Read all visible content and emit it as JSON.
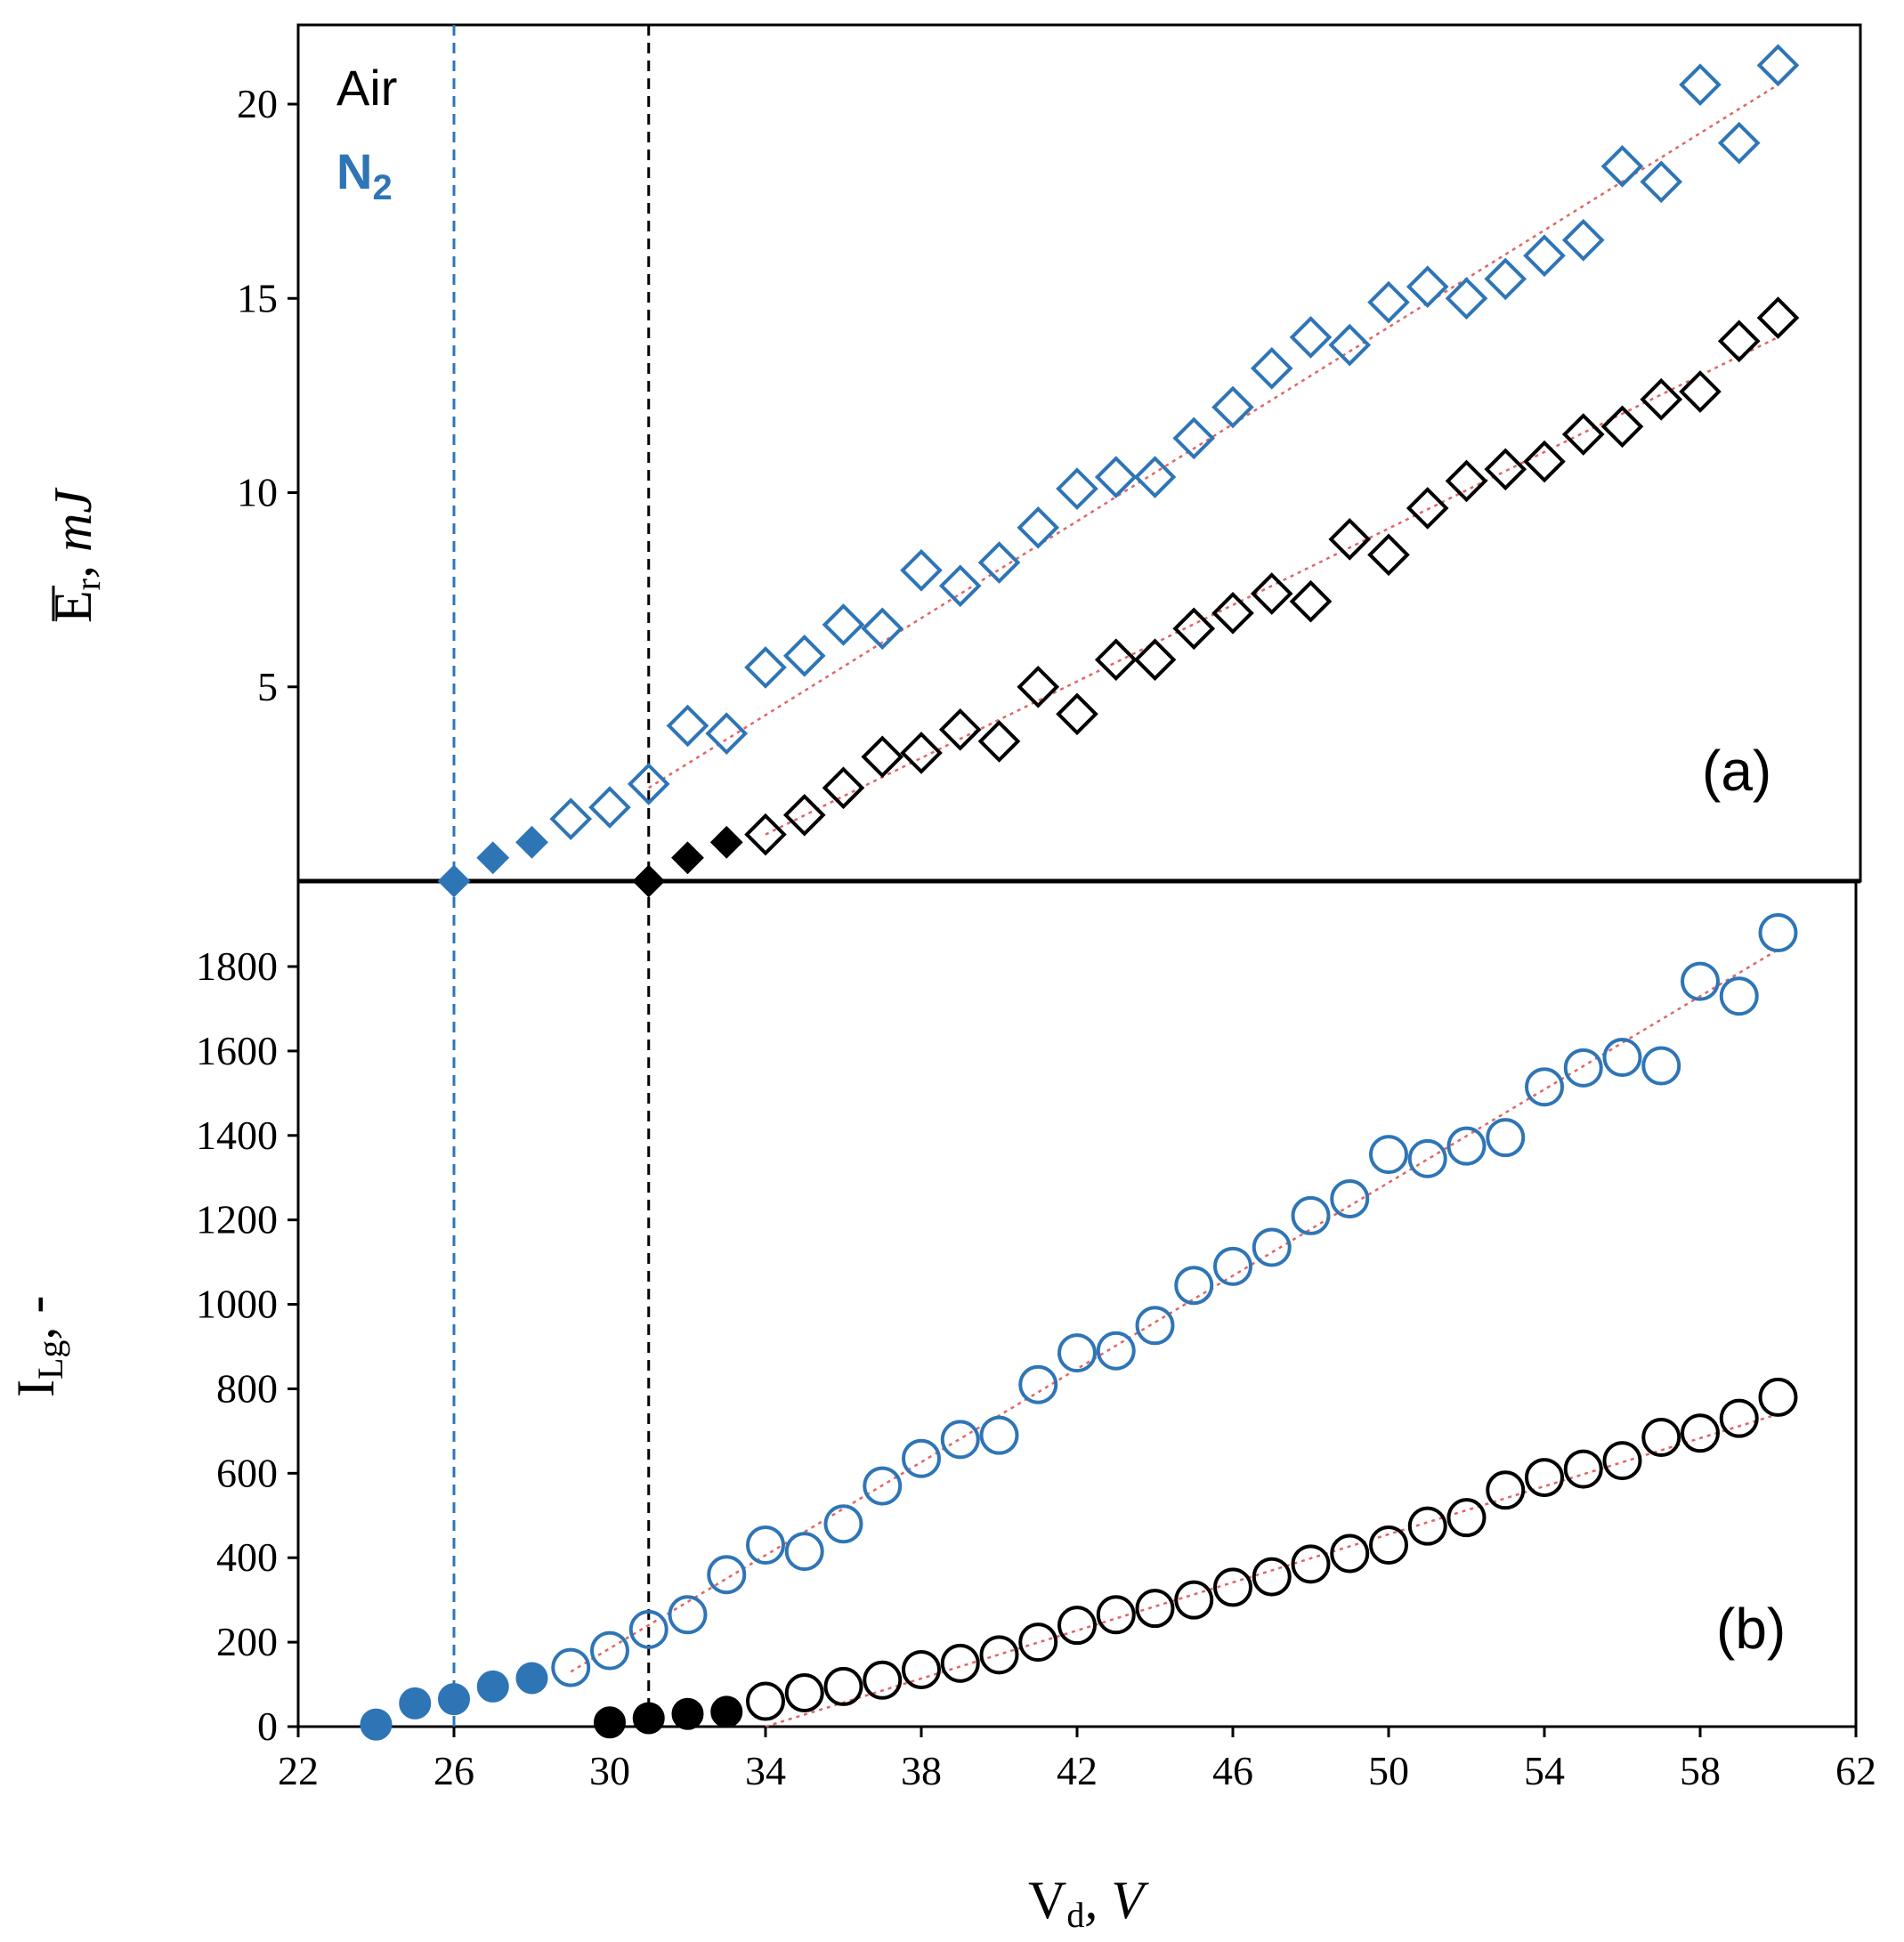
{
  "chart_data": [
    {
      "panel": "a",
      "type": "scatter",
      "panel_label": "(a)",
      "ylabel_main": "E",
      "ylabel_sub": "r",
      "ylabel_unit": ", mJ",
      "ylim": [
        0,
        22
      ],
      "yticks": [
        5,
        10,
        15,
        20
      ],
      "yticklabels": [
        "5",
        "10",
        "15",
        "20"
      ],
      "legend": [
        {
          "label": "Air",
          "color": "#000000"
        },
        {
          "label": "N",
          "sub": "2",
          "color": "#2e75b6"
        }
      ],
      "threshold_lines": [
        {
          "series": "N2",
          "x": 26,
          "color": "#2e75b6"
        },
        {
          "series": "Air",
          "x": 31,
          "color": "#000000"
        }
      ],
      "series": [
        {
          "name": "N2",
          "color": "#2e75b6",
          "marker": "diamond",
          "points": [
            [
              26,
              0.0,
              1
            ],
            [
              27,
              0.6,
              1
            ],
            [
              28,
              1.0,
              1
            ],
            [
              29,
              1.6,
              0
            ],
            [
              30,
              1.9,
              0
            ],
            [
              31,
              2.5,
              0
            ],
            [
              32,
              4.0,
              0
            ],
            [
              33,
              3.8,
              0
            ],
            [
              34,
              5.5,
              0
            ],
            [
              35,
              5.8,
              0
            ],
            [
              36,
              6.6,
              0
            ],
            [
              37,
              6.5,
              0
            ],
            [
              38,
              8.0,
              0
            ],
            [
              39,
              7.6,
              0
            ],
            [
              40,
              8.2,
              0
            ],
            [
              41,
              9.1,
              0
            ],
            [
              42,
              10.1,
              0
            ],
            [
              43,
              10.4,
              0
            ],
            [
              44,
              10.4,
              0
            ],
            [
              45,
              11.4,
              0
            ],
            [
              46,
              12.2,
              0
            ],
            [
              47,
              13.2,
              0
            ],
            [
              48,
              14.0,
              0
            ],
            [
              49,
              13.8,
              0
            ],
            [
              50,
              14.9,
              0
            ],
            [
              51,
              15.3,
              0
            ],
            [
              52,
              15.0,
              0
            ],
            [
              53,
              15.5,
              0
            ],
            [
              54,
              16.1,
              0
            ],
            [
              55,
              16.5,
              0
            ],
            [
              56,
              18.4,
              0
            ],
            [
              57,
              18.0,
              0
            ],
            [
              58,
              20.5,
              0
            ],
            [
              59,
              19.0,
              0
            ],
            [
              60,
              21.0,
              0
            ]
          ],
          "trend": {
            "x": [
              31,
              60
            ],
            "y": [
              2.4,
              20.5
            ]
          }
        },
        {
          "name": "Air",
          "color": "#000000",
          "marker": "diamond",
          "points": [
            [
              31,
              0.0,
              1
            ],
            [
              32,
              0.6,
              1
            ],
            [
              33,
              1.0,
              1
            ],
            [
              34,
              1.2,
              0
            ],
            [
              35,
              1.7,
              0
            ],
            [
              36,
              2.4,
              0
            ],
            [
              37,
              3.2,
              0
            ],
            [
              38,
              3.3,
              0
            ],
            [
              39,
              3.9,
              0
            ],
            [
              40,
              3.6,
              0
            ],
            [
              41,
              5.0,
              0
            ],
            [
              42,
              4.3,
              0
            ],
            [
              43,
              5.7,
              0
            ],
            [
              44,
              5.7,
              0
            ],
            [
              45,
              6.5,
              0
            ],
            [
              46,
              6.9,
              0
            ],
            [
              47,
              7.4,
              0
            ],
            [
              48,
              7.2,
              0
            ],
            [
              49,
              8.8,
              0
            ],
            [
              50,
              8.4,
              0
            ],
            [
              51,
              9.6,
              0
            ],
            [
              52,
              10.3,
              0
            ],
            [
              53,
              10.6,
              0
            ],
            [
              54,
              10.8,
              0
            ],
            [
              55,
              11.5,
              0
            ],
            [
              56,
              11.7,
              0
            ],
            [
              57,
              12.4,
              0
            ],
            [
              58,
              12.6,
              0
            ],
            [
              59,
              13.9,
              0
            ],
            [
              60,
              14.5,
              0
            ]
          ],
          "trend": {
            "x": [
              34,
              60
            ],
            "y": [
              1.2,
              14.0
            ]
          }
        }
      ]
    },
    {
      "panel": "b",
      "type": "scatter",
      "panel_label": "(b)",
      "ylabel_main": "I",
      "ylabel_sub": "Lg",
      "ylabel_unit": ", -",
      "xlabel_main": "V",
      "xlabel_sub": "d",
      "xlabel_unit": ", V",
      "xlim": [
        22,
        62
      ],
      "xticks": [
        22,
        26,
        30,
        34,
        38,
        42,
        46,
        50,
        54,
        58,
        62
      ],
      "xticklabels": [
        "22",
        "26",
        "30",
        "34",
        "38",
        "42",
        "46",
        "50",
        "54",
        "58",
        "62"
      ],
      "ylim": [
        0,
        1960
      ],
      "yticks": [
        0,
        200,
        400,
        600,
        800,
        1000,
        1200,
        1400,
        1600,
        1800
      ],
      "yticklabels": [
        "0",
        "200",
        "400",
        "600",
        "800",
        "1000",
        "1200",
        "1400",
        "1600",
        "1800"
      ],
      "series": [
        {
          "name": "N2",
          "color": "#2e75b6",
          "marker": "circle",
          "points": [
            [
              24,
              5,
              1
            ],
            [
              25,
              55,
              1
            ],
            [
              26,
              65,
              1
            ],
            [
              27,
              95,
              1
            ],
            [
              28,
              115,
              1
            ],
            [
              29,
              140,
              0
            ],
            [
              30,
              180,
              0
            ],
            [
              31,
              230,
              0
            ],
            [
              32,
              265,
              0
            ],
            [
              33,
              360,
              0
            ],
            [
              34,
              430,
              0
            ],
            [
              35,
              415,
              0
            ],
            [
              36,
              480,
              0
            ],
            [
              37,
              570,
              0
            ],
            [
              38,
              635,
              0
            ],
            [
              39,
              680,
              0
            ],
            [
              40,
              690,
              0
            ],
            [
              41,
              810,
              0
            ],
            [
              42,
              885,
              0
            ],
            [
              43,
              890,
              0
            ],
            [
              44,
              950,
              0
            ],
            [
              45,
              1045,
              0
            ],
            [
              46,
              1090,
              0
            ],
            [
              47,
              1135,
              0
            ],
            [
              48,
              1210,
              0
            ],
            [
              49,
              1250,
              0
            ],
            [
              50,
              1355,
              0
            ],
            [
              51,
              1345,
              0
            ],
            [
              52,
              1375,
              0
            ],
            [
              53,
              1395,
              0
            ],
            [
              54,
              1515,
              0
            ],
            [
              55,
              1560,
              0
            ],
            [
              56,
              1585,
              0
            ],
            [
              57,
              1565,
              0
            ],
            [
              58,
              1765,
              0
            ],
            [
              59,
              1730,
              0
            ],
            [
              60,
              1880,
              0
            ]
          ],
          "trend": {
            "x": [
              29,
              60
            ],
            "y": [
              130,
              1840
            ]
          }
        },
        {
          "name": "Air",
          "color": "#000000",
          "marker": "circle",
          "points": [
            [
              30,
              10,
              1
            ],
            [
              31,
              20,
              1
            ],
            [
              32,
              30,
              1
            ],
            [
              33,
              35,
              1
            ],
            [
              34,
              60,
              0
            ],
            [
              35,
              80,
              0
            ],
            [
              36,
              95,
              0
            ],
            [
              37,
              110,
              0
            ],
            [
              38,
              135,
              0
            ],
            [
              39,
              150,
              0
            ],
            [
              40,
              170,
              0
            ],
            [
              41,
              200,
              0
            ],
            [
              42,
              240,
              0
            ],
            [
              43,
              265,
              0
            ],
            [
              44,
              280,
              0
            ],
            [
              45,
              300,
              0
            ],
            [
              46,
              330,
              0
            ],
            [
              47,
              355,
              0
            ],
            [
              48,
              385,
              0
            ],
            [
              49,
              410,
              0
            ],
            [
              50,
              430,
              0
            ],
            [
              51,
              475,
              0
            ],
            [
              52,
              495,
              0
            ],
            [
              53,
              560,
              0
            ],
            [
              54,
              590,
              0
            ],
            [
              55,
              610,
              0
            ],
            [
              56,
              630,
              0
            ],
            [
              57,
              685,
              0
            ],
            [
              58,
              695,
              0
            ],
            [
              59,
              730,
              0
            ],
            [
              60,
              780,
              0
            ]
          ],
          "trend": {
            "x": [
              34,
              60
            ],
            "y": [
              0,
              740
            ]
          }
        }
      ]
    }
  ]
}
